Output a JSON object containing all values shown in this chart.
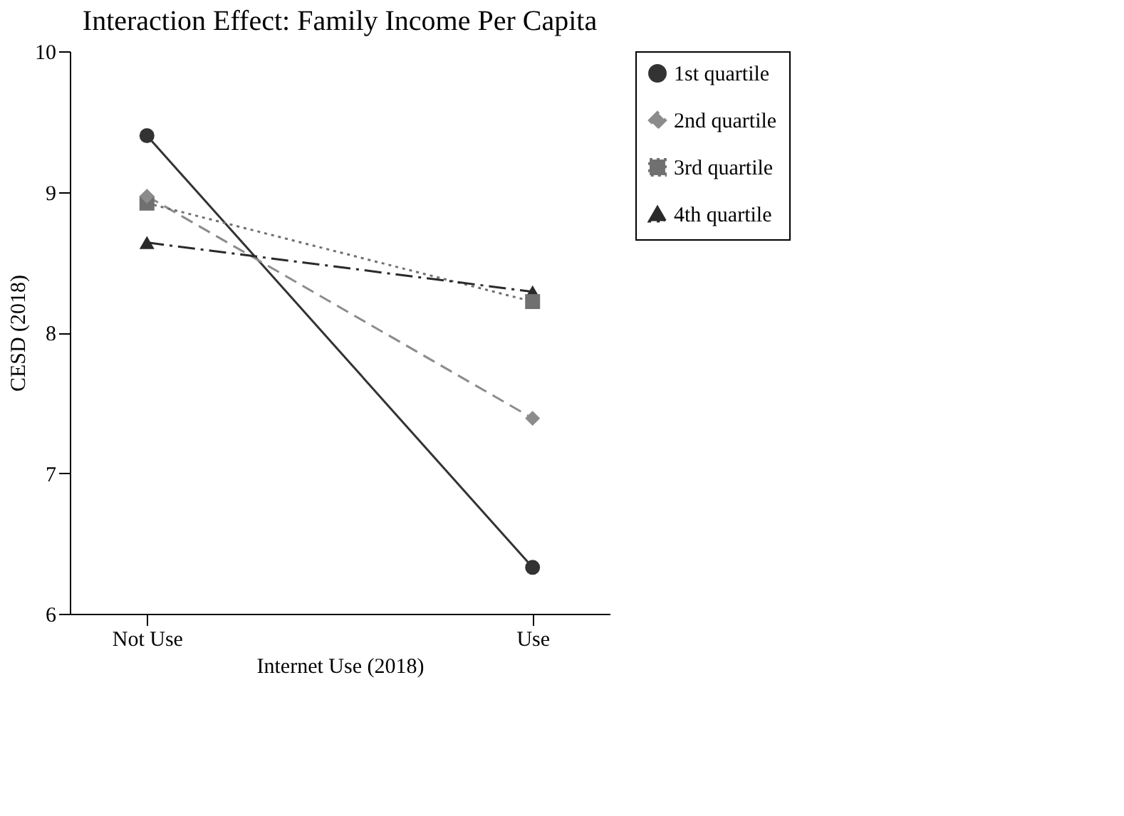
{
  "chart_data": {
    "type": "line",
    "title": "Interaction Effect:  Family Income Per Capita",
    "xlabel": "Internet Use (2018)",
    "ylabel": "CESD (2018)",
    "categories": [
      "Not Use",
      "Use"
    ],
    "series": [
      {
        "name": "1st quartile",
        "color": "#333333",
        "marker": "circle",
        "line_style": "solid",
        "values": [
          9.4,
          6.33
        ]
      },
      {
        "name": "2nd quartile",
        "color": "#8c8c8c",
        "marker": "diamond",
        "line_style": "dashed",
        "values": [
          8.97,
          7.39
        ]
      },
      {
        "name": "3rd quartile",
        "color": "#707070",
        "marker": "square",
        "line_style": "dotted",
        "values": [
          8.92,
          8.22
        ]
      },
      {
        "name": "4th quartile",
        "color": "#2a2a2a",
        "marker": "triangle",
        "line_style": "dashdot",
        "values": [
          8.64,
          8.29
        ]
      }
    ],
    "ylim": [
      6,
      10
    ],
    "yticks": [
      6,
      7,
      8,
      9,
      10
    ],
    "grid": false,
    "legend": "right"
  }
}
